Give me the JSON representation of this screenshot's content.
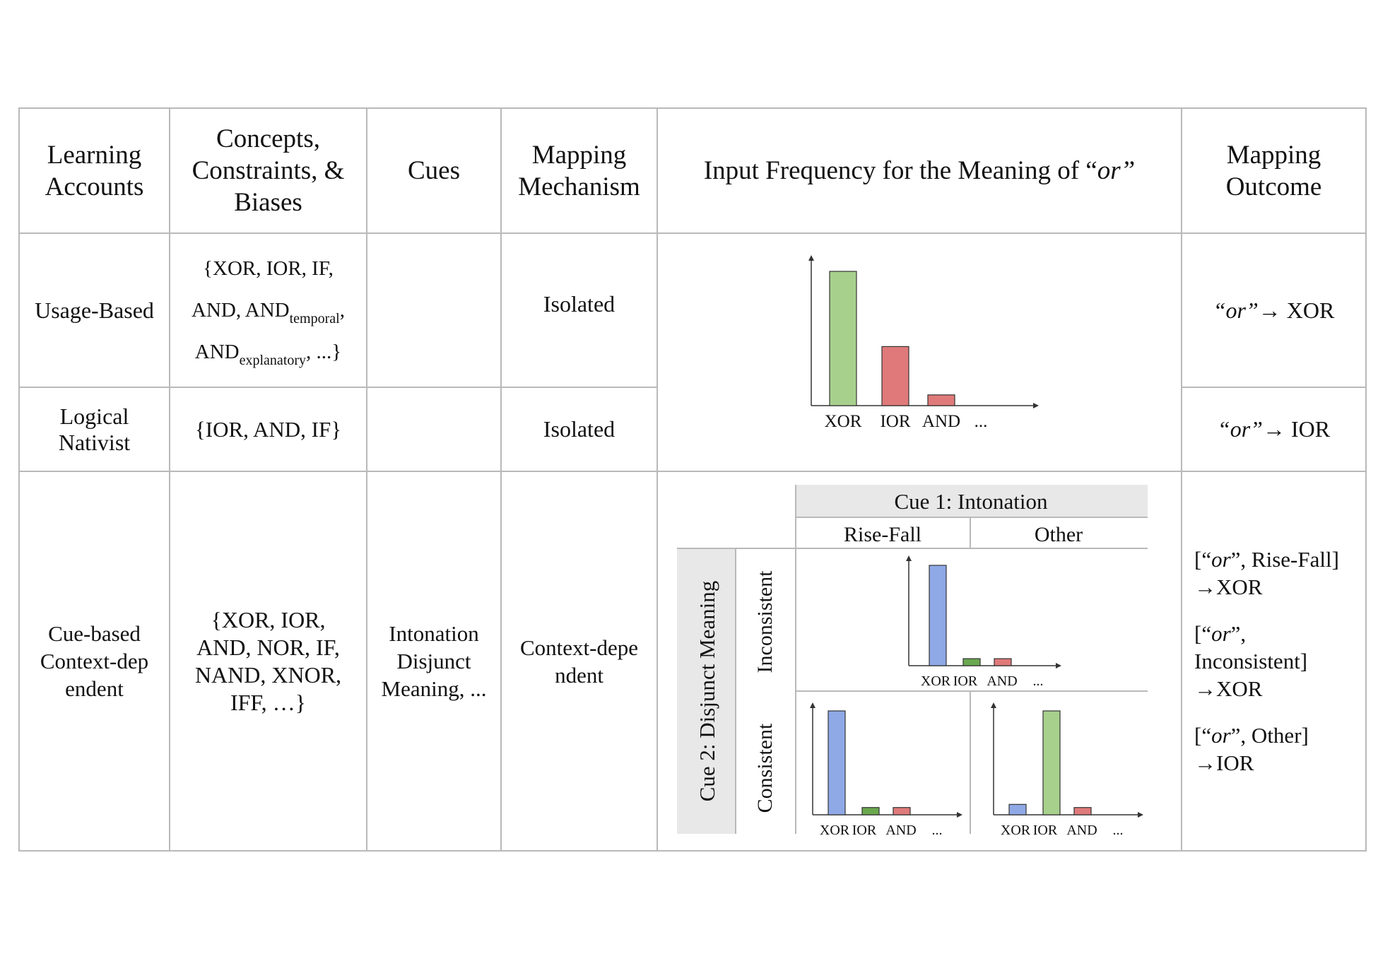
{
  "headers": {
    "learning_accounts": "Learning Accounts",
    "concepts": "Concepts, Constraints, & Biases",
    "cues": "Cues",
    "mapping_mechanism": "Mapping Mechanism",
    "input_frequency_prefix": "Input Frequency for the Meaning of “",
    "input_frequency_or": "or”",
    "mapping_outcome": "Mapping Outcome"
  },
  "rows": {
    "usage_based": {
      "account": "Usage-Based",
      "concepts_line1": "{XOR, IOR, IF,",
      "concepts_line2_pre": "AND, AND",
      "concepts_line2_sub": "temporal",
      "concepts_line2_post": ",",
      "concepts_line3_pre": "AND",
      "concepts_line3_sub": "explanatory",
      "concepts_line3_post": ", ...}",
      "cues": "",
      "mechanism": "Isolated",
      "outcome_q": "“or”",
      "outcome_arrow": "→ XOR"
    },
    "logical_nativist": {
      "account": "Logical Nativist",
      "concepts": "{IOR, AND, IF}",
      "cues": "",
      "mechanism": "Isolated",
      "outcome_q": "“or”",
      "outcome_arrow": "→ IOR"
    },
    "cue_based": {
      "account": "Cue-based Context-dep endent",
      "concepts": "{XOR, IOR, AND, NOR, IF, NAND, XNOR, IFF, …}",
      "cues": "Intonation Disjunct Meaning, ...",
      "mechanism": "Context-depe ndent",
      "outcomes": [
        {
          "pre": "[“",
          "or": "or",
          "post": "”, Rise-Fall]",
          "result": "→XOR"
        },
        {
          "pre": "[“",
          "or": "or",
          "post": "”, Inconsistent]",
          "result": "→XOR"
        },
        {
          "pre": "[“",
          "or": "or",
          "post": "”, Other]",
          "result": "→IOR"
        }
      ]
    }
  },
  "cue_grid": {
    "cue1_title": "Cue 1: Intonation",
    "cue1_values": [
      "Rise-Fall",
      "Other"
    ],
    "cue2_title": "Cue 2: Disjunct Meaning",
    "cue2_values": [
      "Inconsistent",
      "Consistent"
    ]
  },
  "colors": {
    "green": "#a8d08d",
    "red": "#e07a7a",
    "blue": "#8fa9e6",
    "dark_green": "#6aa84f",
    "header_gray": "#e8e8e8"
  },
  "chart_data": [
    {
      "type": "bar",
      "name": "usage-logical",
      "categories": [
        "XOR",
        "IOR",
        "AND",
        "..."
      ],
      "values": [
        100,
        44,
        8,
        0
      ],
      "colors": [
        "#a8d08d",
        "#e07a7a",
        "#e07a7a",
        ""
      ],
      "ylim": [
        0,
        110
      ]
    },
    {
      "type": "bar",
      "name": "rise-fall-inconsistent",
      "categories": [
        "XOR",
        "IOR",
        "AND",
        "..."
      ],
      "values": [
        100,
        7,
        7,
        0
      ],
      "colors": [
        "#8fa9e6",
        "#6aa84f",
        "#e07a7a",
        ""
      ],
      "ylim": [
        0,
        110
      ]
    },
    {
      "type": "bar",
      "name": "rise-fall-consistent",
      "categories": [
        "XOR",
        "IOR",
        "AND",
        "..."
      ],
      "values": [
        100,
        7,
        7,
        0
      ],
      "colors": [
        "#8fa9e6",
        "#6aa84f",
        "#e07a7a",
        ""
      ],
      "ylim": [
        0,
        110
      ]
    },
    {
      "type": "bar",
      "name": "other-consistent",
      "categories": [
        "XOR",
        "IOR",
        "AND",
        "..."
      ],
      "values": [
        10,
        100,
        7,
        0
      ],
      "colors": [
        "#8fa9e6",
        "#a8d08d",
        "#e07a7a",
        ""
      ],
      "ylim": [
        0,
        110
      ]
    }
  ]
}
